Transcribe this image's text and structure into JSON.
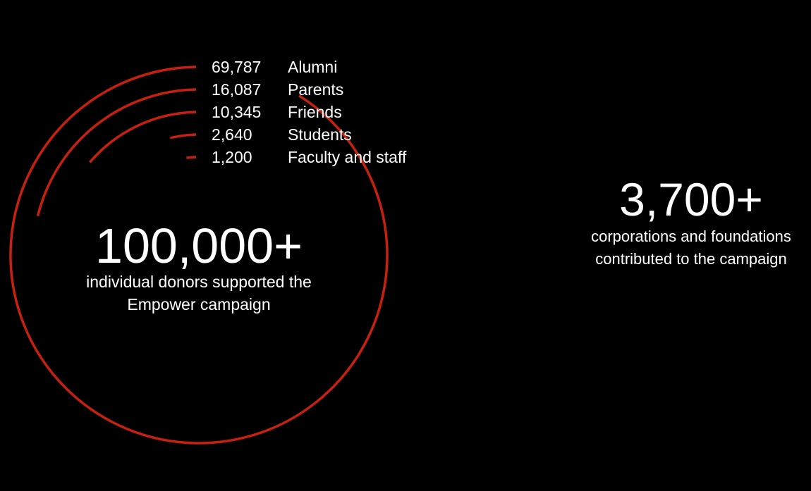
{
  "colors": {
    "background": "#000000",
    "arc": "#c8200e",
    "text": "#ffffff"
  },
  "chart_data": {
    "type": "bar",
    "categories": [
      "Alumni",
      "Parents",
      "Friends",
      "Students",
      "Faculty and staff"
    ],
    "values": [
      69787,
      16087,
      10345,
      2640,
      1200
    ],
    "value_labels": [
      "69,787",
      "16,087",
      "10,345",
      "2,640",
      "1,200"
    ],
    "title": "",
    "xlabel": "",
    "ylabel": ""
  },
  "summary": {
    "donors_total": "100,000+",
    "donors_text_line1": "individual donors supported the",
    "donors_text_line2": "Empower campaign",
    "orgs_total": "3,700+",
    "orgs_text_line1": "corporations and foundations",
    "orgs_text_line2": "contributed to the campaign"
  }
}
